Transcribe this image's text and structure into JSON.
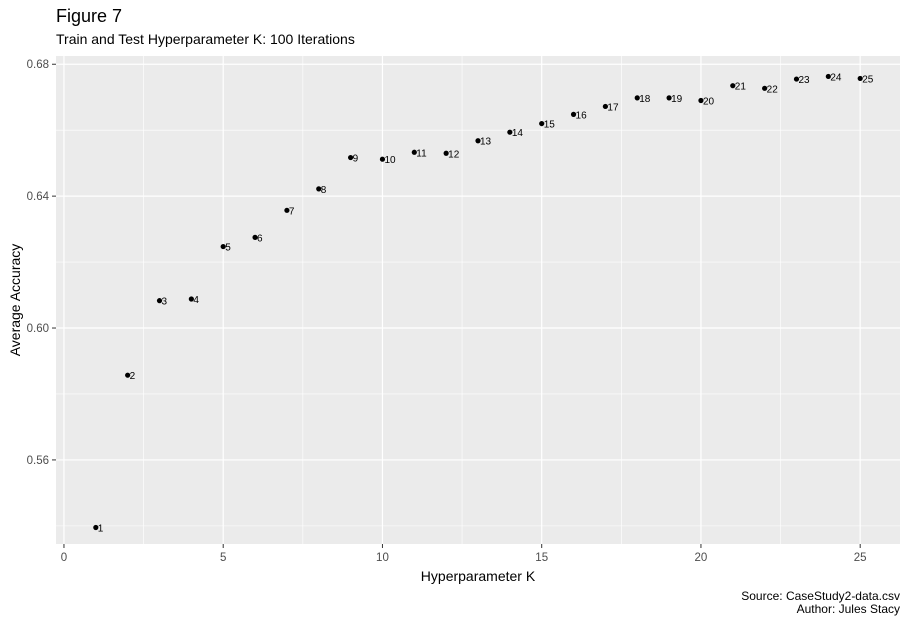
{
  "header": {
    "title": "Figure 7",
    "subtitle": "Train and Test Hyperparameter K: 100 Iterations"
  },
  "caption": {
    "line1": "Source: CaseStudy2-data.csv",
    "line2": "Author: Jules Stacy"
  },
  "colors": {
    "panel": "#ebebeb",
    "grid_major": "#ffffff",
    "point": "#000000"
  },
  "chart_data": {
    "type": "scatter",
    "title": "Figure 7",
    "subtitle": "Train and Test Hyperparameter K: 100 Iterations",
    "xlabel": "Hyperparameter K",
    "ylabel": "Average Accuracy",
    "xlim": [
      -0.25,
      26.25
    ],
    "ylim": [
      0.5345,
      0.6825
    ],
    "x_ticks": [
      0,
      5,
      10,
      15,
      20,
      25
    ],
    "y_ticks": [
      0.56,
      0.6,
      0.64,
      0.68
    ],
    "y_tick_labels": [
      "0.56",
      "0.60",
      "0.64",
      "0.68"
    ],
    "grid": true,
    "x": [
      1,
      2,
      3,
      4,
      5,
      6,
      7,
      8,
      9,
      10,
      11,
      12,
      13,
      14,
      15,
      16,
      17,
      18,
      19,
      20,
      21,
      22,
      23,
      24,
      25
    ],
    "y": [
      0.5395,
      0.5857,
      0.6083,
      0.6088,
      0.6247,
      0.6275,
      0.6357,
      0.6422,
      0.6517,
      0.6512,
      0.6533,
      0.653,
      0.6568,
      0.6594,
      0.662,
      0.6648,
      0.6672,
      0.6698,
      0.6698,
      0.669,
      0.6735,
      0.6727,
      0.6755,
      0.6763,
      0.6757
    ],
    "point_labels": [
      "1",
      "2",
      "3",
      "4",
      "5",
      "6",
      "7",
      "8",
      "9",
      "10",
      "11",
      "12",
      "13",
      "14",
      "15",
      "16",
      "17",
      "18",
      "19",
      "20",
      "21",
      "22",
      "23",
      "24",
      "25"
    ]
  }
}
